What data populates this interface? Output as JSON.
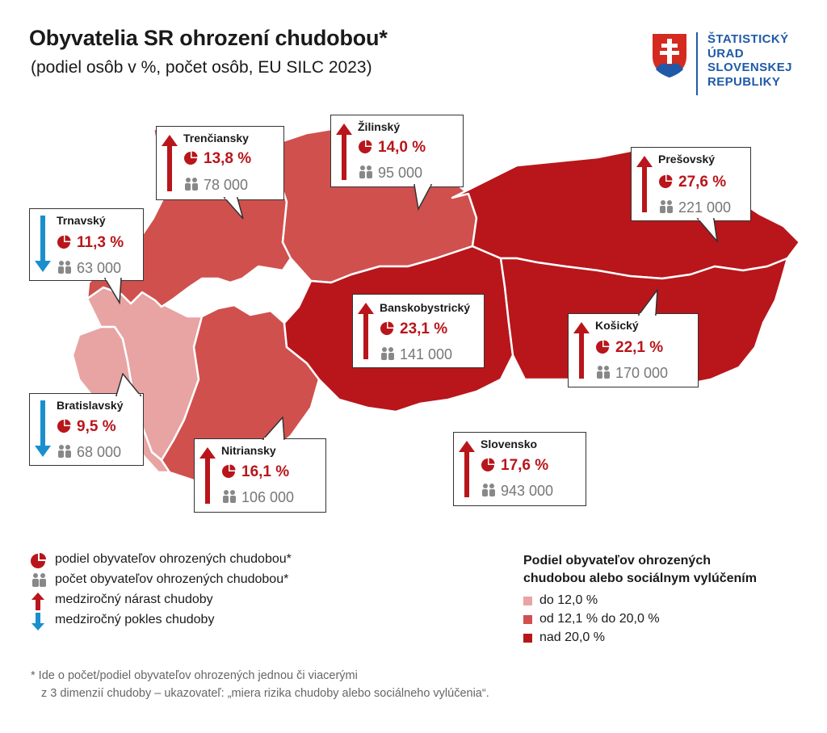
{
  "header": {
    "title": "Obyvatelia SR ohrození chudobou*",
    "subtitle": "(podiel osôb v %, počet osôb, EU SILC 2023)"
  },
  "logo": {
    "line1": "ŠTATISTICKÝ",
    "line2": "ÚRAD",
    "line3": "SLOVENSKEJ",
    "line4": "REPUBLIKY"
  },
  "colors": {
    "low": "#e8a3a3",
    "mid": "#d0504e",
    "high": "#b8161b",
    "increase_arrow": "#b8161b",
    "decrease_arrow": "#1a8fce",
    "logo_blue": "#1f5aa8"
  },
  "regions": {
    "trenciansky": {
      "name": "Trenčiansky",
      "share": "13,8 %",
      "count": "78 000",
      "trend": "up",
      "category": "mid"
    },
    "zilinsky": {
      "name": "Žilinský",
      "share": "14,0 %",
      "count": "95 000",
      "trend": "up",
      "category": "mid"
    },
    "presovsky": {
      "name": "Prešovský",
      "share": "27,6 %",
      "count": "221 000",
      "trend": "up",
      "category": "high"
    },
    "trnavsky": {
      "name": "Trnavský",
      "share": "11,3 %",
      "count": "63 000",
      "trend": "down",
      "category": "low"
    },
    "banskobystricky": {
      "name": "Banskobystrický",
      "share": "23,1 %",
      "count": "141 000",
      "trend": "up",
      "category": "high"
    },
    "kosicky": {
      "name": "Košický",
      "share": "22,1 %",
      "count": "170 000",
      "trend": "up",
      "category": "high"
    },
    "bratislavsky": {
      "name": "Bratislavský",
      "share": "9,5 %",
      "count": "68 000",
      "trend": "down",
      "category": "low"
    },
    "nitriansky": {
      "name": "Nitriansky",
      "share": "16,1 %",
      "count": "106 000",
      "trend": "up",
      "category": "mid"
    },
    "slovensko": {
      "name": "Slovensko",
      "share": "17,6 %",
      "count": "943 000",
      "trend": "up"
    }
  },
  "legend": {
    "share": "podiel obyvateľov ohrozených chudobou*",
    "count": "počet obyvateľov ohrozených chudobou*",
    "increase": "medziročný nárast chudoby",
    "decrease": "medziročný pokles chudoby"
  },
  "scale": {
    "title_line1": "Podiel obyvateľov ohrozených",
    "title_line2": "chudobou alebo sociálnym vylúčením",
    "items": [
      "do 12,0 %",
      "od 12,1 % do 20,0 %",
      "nad 20,0 %"
    ]
  },
  "footnote": {
    "line1": "* Ide o počet/podiel obyvateľov ohrozených jednou či viacerými",
    "line2": "z 3 dimenzií chudoby – ukazovateľ: „miera rizika chudoby alebo sociálneho vylúčenia“."
  }
}
